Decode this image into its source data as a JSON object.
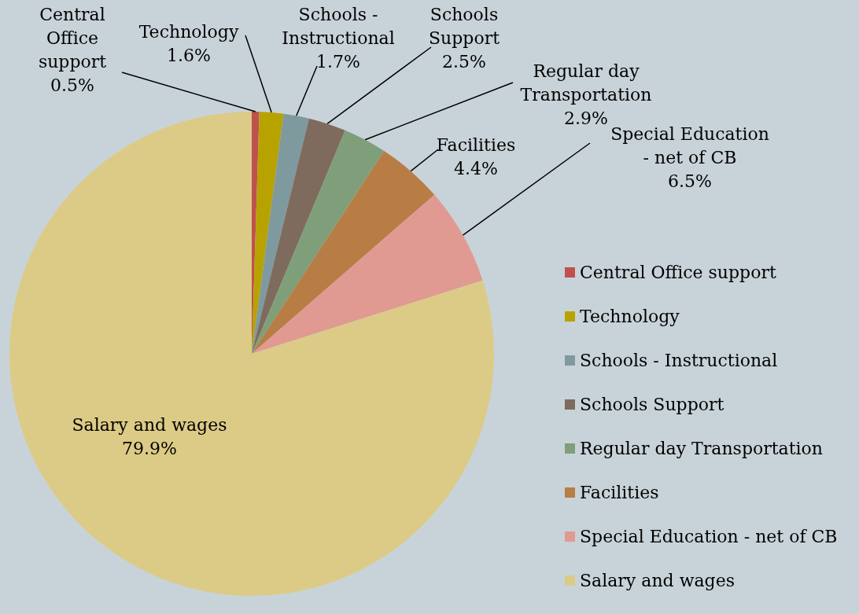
{
  "chart_data": {
    "type": "pie",
    "categories": [
      "Central Office support",
      "Technology",
      "Schools - Instructional",
      "Schools Support",
      "Regular day Transportation",
      "Facilities",
      "Special Education - net of CB",
      "Salary and wages"
    ],
    "values": [
      0.5,
      1.6,
      1.7,
      2.5,
      2.9,
      4.4,
      6.5,
      79.9
    ],
    "colors": [
      "#c0504d",
      "#b8a200",
      "#7f9a9e",
      "#7f6b5d",
      "#7f9f7a",
      "#b87d45",
      "#e09a92",
      "#dccb86"
    ],
    "value_labels": [
      "0.5%",
      "1.6%",
      "1.7%",
      "2.5%",
      "2.9%",
      "4.4%",
      "6.5%",
      "79.9%"
    ],
    "legend": "right"
  }
}
